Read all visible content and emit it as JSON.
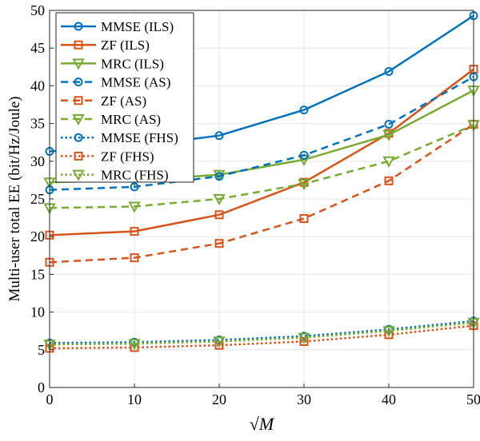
{
  "chart_data": {
    "type": "line",
    "title": "",
    "xlabel": "√M",
    "ylabel": "Multi-user total EE (bit/Hz/Joule)",
    "xlim": [
      0,
      50
    ],
    "ylim": [
      0,
      50
    ],
    "xticks": [
      0,
      10,
      20,
      30,
      40,
      50
    ],
    "yticks": [
      0,
      5,
      10,
      15,
      20,
      25,
      30,
      35,
      40,
      45,
      50
    ],
    "grid": true,
    "legend_position": "top-left",
    "x": [
      0,
      10,
      20,
      30,
      40,
      50
    ],
    "series": [
      {
        "name": "MMSE (ILS)",
        "color": "#0072BD",
        "dash": "solid",
        "marker": "circle",
        "values": [
          31.3,
          32.0,
          33.4,
          36.8,
          41.9,
          49.3
        ]
      },
      {
        "name": "ZF (ILS)",
        "color": "#D95319",
        "dash": "solid",
        "marker": "square",
        "values": [
          20.2,
          20.7,
          22.9,
          27.2,
          33.7,
          42.2
        ]
      },
      {
        "name": "MRC (ILS)",
        "color": "#77AC30",
        "dash": "solid",
        "marker": "triangle-down",
        "values": [
          27.2,
          27.5,
          28.2,
          30.2,
          33.5,
          39.4
        ]
      },
      {
        "name": "MMSE (AS)",
        "color": "#0072BD",
        "dash": "dashed",
        "marker": "circle",
        "values": [
          26.2,
          26.6,
          28.0,
          30.8,
          34.9,
          41.2
        ]
      },
      {
        "name": "ZF (AS)",
        "color": "#D95319",
        "dash": "dashed",
        "marker": "square",
        "values": [
          16.6,
          17.2,
          19.1,
          22.4,
          27.4,
          34.9
        ]
      },
      {
        "name": "MRC (AS)",
        "color": "#77AC30",
        "dash": "dashed",
        "marker": "triangle-down",
        "values": [
          23.8,
          24.0,
          25.0,
          27.0,
          30.0,
          34.8
        ]
      },
      {
        "name": "MMSE (FHS)",
        "color": "#0072BD",
        "dash": "dotted",
        "marker": "circle",
        "values": [
          5.9,
          6.0,
          6.3,
          6.8,
          7.7,
          8.8
        ]
      },
      {
        "name": "ZF (FHS)",
        "color": "#D95319",
        "dash": "dotted",
        "marker": "square",
        "values": [
          5.2,
          5.3,
          5.6,
          6.1,
          7.0,
          8.2
        ]
      },
      {
        "name": "MRC (FHS)",
        "color": "#77AC30",
        "dash": "dotted",
        "marker": "triangle-down",
        "values": [
          5.7,
          5.8,
          6.1,
          6.6,
          7.5,
          8.6
        ]
      }
    ]
  }
}
